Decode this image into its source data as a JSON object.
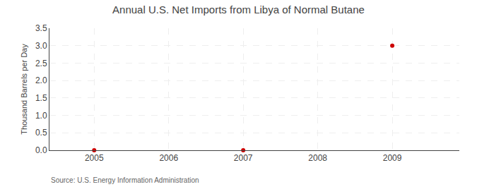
{
  "chart_data": {
    "type": "scatter",
    "title": "Annual U.S. Net Imports from Libya of Normal Butane",
    "ylabel": "Thousand Barrels per Day",
    "annotations": [
      "Source: U.S. Energy Information Administration"
    ],
    "x": [
      2005,
      2007,
      2009
    ],
    "values": [
      0.0,
      0.0,
      3.0
    ],
    "color": "#CC0000",
    "xlim": [
      2004.4,
      2009.9
    ],
    "xticks": [
      2005,
      2006,
      2007,
      2008,
      2009
    ],
    "ylim": [
      0.0,
      3.5
    ],
    "yticks": [
      {
        "value": 0,
        "label": "0.0"
      },
      0.5,
      {
        "value": 1,
        "label": "1.0"
      },
      1.5,
      {
        "value": 2,
        "label": "2.0"
      },
      2.5,
      {
        "value": 3,
        "label": "3.0"
      },
      3.5
    ],
    "grid": true
  }
}
